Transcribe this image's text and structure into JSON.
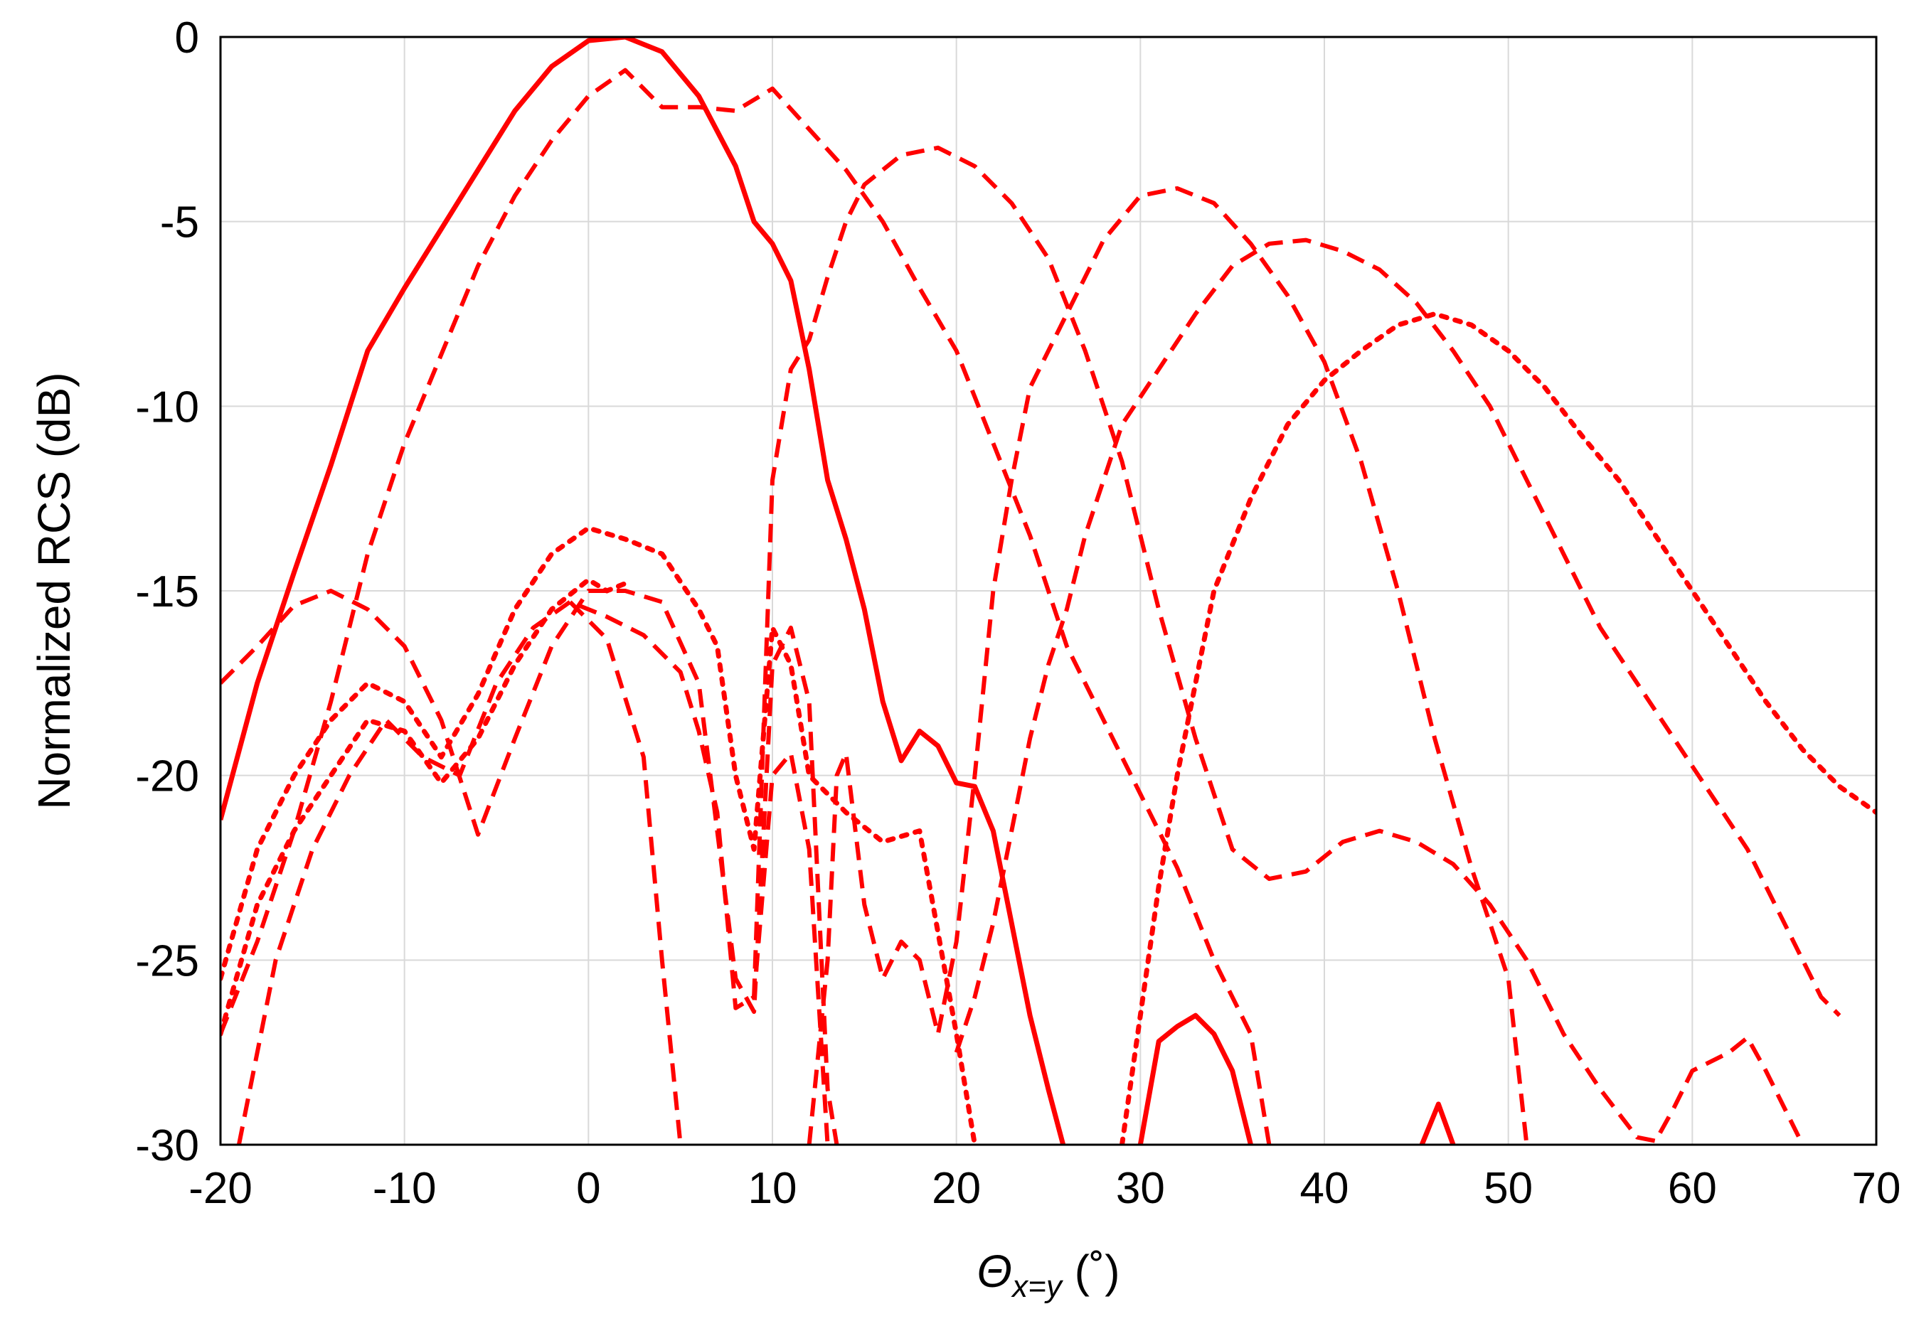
{
  "chart_data": {
    "type": "line",
    "title": "",
    "xlabel": {
      "symbol": "Θ",
      "subscript": "x=y",
      "unit": " (˚)"
    },
    "ylabel": "Normalized RCS (dB)",
    "xlim": [
      -20,
      70
    ],
    "ylim": [
      -30,
      0
    ],
    "xticks": [
      -20,
      -10,
      0,
      10,
      20,
      30,
      40,
      50,
      60,
      70
    ],
    "yticks": [
      0,
      -5,
      -10,
      -15,
      -20,
      -25,
      -30
    ],
    "grid": true,
    "line_color": "#ff0000",
    "series": [
      {
        "style": "solid",
        "points": [
          [
            -20,
            -21.2
          ],
          [
            -18,
            -17.5
          ],
          [
            -16,
            -14.5
          ],
          [
            -14,
            -11.6
          ],
          [
            -12,
            -8.5
          ],
          [
            -10,
            -6.8
          ],
          [
            -8,
            -5.2
          ],
          [
            -6,
            -3.6
          ],
          [
            -4,
            -2.0
          ],
          [
            -2,
            -0.8
          ],
          [
            0,
            -0.1
          ],
          [
            2,
            0.0
          ],
          [
            4,
            -0.4
          ],
          [
            6,
            -1.6
          ],
          [
            8,
            -3.5
          ],
          [
            9,
            -5.0
          ],
          [
            10,
            -5.6
          ],
          [
            11,
            -6.6
          ],
          [
            12,
            -9.0
          ],
          [
            13,
            -12.0
          ],
          [
            14,
            -13.6
          ],
          [
            15,
            -15.5
          ],
          [
            16,
            -18.0
          ],
          [
            17,
            -19.6
          ],
          [
            18,
            -18.8
          ],
          [
            19,
            -19.2
          ],
          [
            20,
            -20.2
          ],
          [
            21,
            -20.3
          ],
          [
            22,
            -21.5
          ],
          [
            23,
            -24.0
          ],
          [
            24,
            -26.5
          ],
          [
            25,
            -28.5
          ],
          [
            25.8,
            -30
          ]
        ]
      },
      {
        "style": "solid",
        "points": [
          [
            30,
            -30
          ],
          [
            31,
            -27.2
          ],
          [
            32,
            -26.8
          ],
          [
            33,
            -26.5
          ],
          [
            34,
            -27.0
          ],
          [
            35,
            -28.0
          ],
          [
            36,
            -30
          ]
        ]
      },
      {
        "style": "solid",
        "points": [
          [
            45.3,
            -30
          ],
          [
            46.2,
            -28.9
          ],
          [
            47,
            -30
          ]
        ]
      },
      {
        "style": "dashed",
        "points": [
          [
            -20,
            -27
          ],
          [
            -18,
            -24.5
          ],
          [
            -16,
            -21.5
          ],
          [
            -14,
            -18.0
          ],
          [
            -12,
            -14.0
          ],
          [
            -10,
            -11.0
          ],
          [
            -8,
            -8.6
          ],
          [
            -6,
            -6.2
          ],
          [
            -4,
            -4.3
          ],
          [
            -2,
            -2.8
          ],
          [
            0,
            -1.6
          ],
          [
            2,
            -0.9
          ],
          [
            4,
            -1.9
          ],
          [
            6,
            -1.9
          ],
          [
            8,
            -2.0
          ],
          [
            10,
            -1.4
          ],
          [
            12,
            -2.5
          ],
          [
            14,
            -3.6
          ],
          [
            16,
            -5.0
          ],
          [
            18,
            -6.8
          ],
          [
            20,
            -8.5
          ],
          [
            22,
            -11.0
          ],
          [
            24,
            -13.5
          ],
          [
            26,
            -16.5
          ],
          [
            28,
            -18.5
          ],
          [
            30,
            -20.5
          ],
          [
            32,
            -22.5
          ],
          [
            34,
            -25.0
          ],
          [
            36,
            -27.0
          ],
          [
            37,
            -30
          ]
        ]
      },
      {
        "style": "dashed",
        "points": [
          [
            -20,
            -17.5
          ],
          [
            -18,
            -16.5
          ],
          [
            -16,
            -15.4
          ],
          [
            -14,
            -15.0
          ],
          [
            -12,
            -15.5
          ],
          [
            -10,
            -16.5
          ],
          [
            -8,
            -18.5
          ],
          [
            -6,
            -21.6
          ],
          [
            -4,
            -19.0
          ],
          [
            -2,
            -16.5
          ],
          [
            0,
            -15.0
          ],
          [
            2,
            -15.0
          ],
          [
            4,
            -15.3
          ],
          [
            6,
            -17.5
          ],
          [
            8,
            -25.5
          ],
          [
            9,
            -26.4
          ],
          [
            10,
            -17.0
          ],
          [
            11,
            -16.0
          ],
          [
            12,
            -18.0
          ],
          [
            13,
            -28.5
          ],
          [
            13.5,
            -30
          ]
        ]
      },
      {
        "style": "dashed",
        "points": [
          [
            -19,
            -30
          ],
          [
            -17,
            -25.0
          ],
          [
            -15,
            -22.0
          ],
          [
            -13,
            -20.0
          ],
          [
            -11,
            -18.5
          ],
          [
            -9,
            -19.5
          ],
          [
            -7,
            -20.0
          ],
          [
            -5,
            -17.5
          ],
          [
            -3,
            -16.0
          ],
          [
            -1,
            -15.3
          ],
          [
            1,
            -15.7
          ],
          [
            3,
            -16.2
          ],
          [
            5,
            -17.2
          ],
          [
            6,
            -18.8
          ],
          [
            7,
            -21.0
          ],
          [
            8,
            -26.3
          ],
          [
            9,
            -26.0
          ],
          [
            10,
            -20.0
          ],
          [
            11,
            -19.4
          ],
          [
            12,
            -22.0
          ],
          [
            13,
            -30
          ]
        ]
      },
      {
        "style": "dashed",
        "points": [
          [
            -1,
            -15.3
          ],
          [
            1,
            -16.3
          ],
          [
            3,
            -19.5
          ],
          [
            4,
            -25.0
          ],
          [
            5,
            -30
          ]
        ]
      },
      {
        "style": "dashed",
        "points": [
          [
            9,
            -26
          ],
          [
            10,
            -12.0
          ],
          [
            11,
            -9.0
          ],
          [
            12,
            -8.2
          ],
          [
            13,
            -6.5
          ],
          [
            14,
            -5.0
          ],
          [
            15,
            -4.0
          ],
          [
            17,
            -3.2
          ],
          [
            19,
            -3.0
          ],
          [
            21,
            -3.5
          ],
          [
            23,
            -4.5
          ],
          [
            25,
            -6.0
          ],
          [
            27,
            -8.5
          ],
          [
            29,
            -11.5
          ],
          [
            31,
            -15.5
          ],
          [
            33,
            -19.0
          ],
          [
            35,
            -22.0
          ],
          [
            37,
            -22.8
          ],
          [
            39,
            -22.6
          ],
          [
            41,
            -21.8
          ],
          [
            43,
            -21.5
          ],
          [
            45,
            -21.8
          ],
          [
            47,
            -22.4
          ],
          [
            49,
            -23.5
          ],
          [
            51,
            -25.0
          ],
          [
            53,
            -27.0
          ],
          [
            55,
            -28.5
          ],
          [
            57,
            -29.8
          ],
          [
            58,
            -29.9
          ],
          [
            59,
            -29.0
          ],
          [
            60,
            -28.0
          ],
          [
            62,
            -27.5
          ],
          [
            63,
            -27.1
          ],
          [
            64,
            -28.0
          ],
          [
            65,
            -29.0
          ],
          [
            66,
            -30
          ]
        ]
      },
      {
        "style": "dashed",
        "points": [
          [
            12,
            -30
          ],
          [
            13,
            -25.0
          ],
          [
            13.5,
            -20.0
          ],
          [
            14,
            -19.4
          ],
          [
            15,
            -23.5
          ],
          [
            16,
            -25.5
          ],
          [
            17,
            -24.5
          ],
          [
            18,
            -25.0
          ],
          [
            19,
            -27.0
          ],
          [
            20,
            -24.5
          ],
          [
            21,
            -20.0
          ],
          [
            22,
            -15.0
          ],
          [
            23,
            -12.0
          ],
          [
            24,
            -9.5
          ],
          [
            26,
            -7.5
          ],
          [
            28,
            -5.5
          ],
          [
            30,
            -4.3
          ],
          [
            32,
            -4.1
          ],
          [
            34,
            -4.5
          ],
          [
            36,
            -5.6
          ],
          [
            38,
            -7.0
          ],
          [
            40,
            -8.8
          ],
          [
            42,
            -11.5
          ],
          [
            44,
            -15.0
          ],
          [
            46,
            -19.0
          ],
          [
            48,
            -22.5
          ],
          [
            50,
            -25.5
          ],
          [
            51,
            -30
          ]
        ]
      },
      {
        "style": "dashed",
        "points": [
          [
            20,
            -27.5
          ],
          [
            21,
            -26.0
          ],
          [
            22,
            -24.0
          ],
          [
            23,
            -21.5
          ],
          [
            24,
            -19.0
          ],
          [
            25,
            -17.0
          ],
          [
            26,
            -15.5
          ],
          [
            27,
            -13.5
          ],
          [
            28,
            -12.0
          ],
          [
            29,
            -10.5
          ],
          [
            31,
            -9.0
          ],
          [
            33,
            -7.5
          ],
          [
            35,
            -6.2
          ],
          [
            37,
            -5.6
          ],
          [
            39,
            -5.5
          ],
          [
            41,
            -5.8
          ],
          [
            43,
            -6.3
          ],
          [
            45,
            -7.2
          ],
          [
            47,
            -8.5
          ],
          [
            49,
            -10.0
          ],
          [
            51,
            -12.0
          ],
          [
            53,
            -14.0
          ],
          [
            55,
            -16.0
          ],
          [
            57,
            -17.5
          ],
          [
            59,
            -19.0
          ],
          [
            61,
            -20.5
          ],
          [
            63,
            -22.0
          ],
          [
            65,
            -24.0
          ],
          [
            67,
            -26.0
          ],
          [
            68,
            -26.5
          ]
        ]
      },
      {
        "style": "dotted",
        "points": [
          [
            -20,
            -25.5
          ],
          [
            -18,
            -22.0
          ],
          [
            -16,
            -20.0
          ],
          [
            -14,
            -18.5
          ],
          [
            -12,
            -17.5
          ],
          [
            -10,
            -18.0
          ],
          [
            -8,
            -19.5
          ],
          [
            -6,
            -17.8
          ],
          [
            -4,
            -15.5
          ],
          [
            -2,
            -14.0
          ],
          [
            0,
            -13.3
          ],
          [
            2,
            -13.6
          ],
          [
            4,
            -14.0
          ],
          [
            6,
            -15.5
          ],
          [
            7,
            -16.5
          ],
          [
            8,
            -20.0
          ],
          [
            9,
            -22.0
          ],
          [
            10,
            -16.0
          ],
          [
            11,
            -17.0
          ],
          [
            12,
            -20.0
          ],
          [
            14,
            -21.0
          ],
          [
            16,
            -21.8
          ],
          [
            18,
            -21.5
          ],
          [
            20,
            -27.0
          ],
          [
            21,
            -30
          ]
        ]
      },
      {
        "style": "dotted",
        "points": [
          [
            -20,
            -27
          ],
          [
            -18,
            -23.5
          ],
          [
            -16,
            -21.5
          ],
          [
            -14,
            -20.0
          ],
          [
            -12,
            -18.5
          ],
          [
            -10,
            -18.8
          ],
          [
            -8,
            -20.2
          ],
          [
            -6,
            -19.0
          ],
          [
            -4,
            -17.0
          ],
          [
            -2,
            -15.5
          ],
          [
            0,
            -14.7
          ],
          [
            1,
            -15.0
          ],
          [
            2,
            -14.8
          ]
        ]
      },
      {
        "style": "dotted",
        "points": [
          [
            29,
            -30
          ],
          [
            30,
            -26.5
          ],
          [
            31,
            -23.0
          ],
          [
            32,
            -20.0
          ],
          [
            33,
            -17.5
          ],
          [
            34,
            -15.0
          ],
          [
            36,
            -12.5
          ],
          [
            38,
            -10.5
          ],
          [
            40,
            -9.3
          ],
          [
            42,
            -8.5
          ],
          [
            44,
            -7.8
          ],
          [
            46,
            -7.5
          ],
          [
            48,
            -7.8
          ],
          [
            50,
            -8.5
          ],
          [
            52,
            -9.5
          ],
          [
            54,
            -10.8
          ],
          [
            56,
            -12.0
          ],
          [
            58,
            -13.5
          ],
          [
            60,
            -15.0
          ],
          [
            62,
            -16.5
          ],
          [
            64,
            -18.0
          ],
          [
            66,
            -19.3
          ],
          [
            68,
            -20.3
          ],
          [
            70,
            -21.0
          ]
        ]
      }
    ]
  }
}
